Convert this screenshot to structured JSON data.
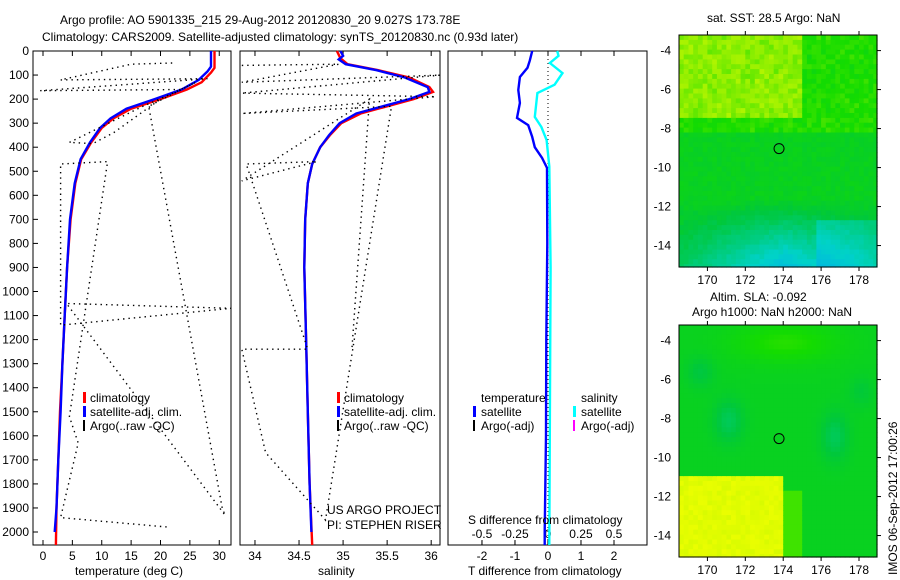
{
  "title": {
    "line1": "Argo profile: AO 5901335_215 29-Aug-2012 20120830_20 9.027S 173.78E",
    "line2": "Climatology: CARS2009. Satellite-adjusted climatology: synTS_20120830.nc (0.93d later)"
  },
  "side_label": "IMOS 06-Sep-2012 17:00:26",
  "colors": {
    "climatology": "#ff0000",
    "satellite": "#0000ff",
    "argo": "#000000",
    "sal_satellite": "#00ffff",
    "sal_argo": "#ff00ff"
  },
  "chart_data": [
    {
      "type": "line",
      "id": "temperature",
      "xlabel": "temperature (deg C)",
      "xlim": [
        -1.7,
        32
      ],
      "ylim": [
        2054,
        0
      ],
      "xticks": [
        0,
        5,
        10,
        15,
        20,
        25,
        30
      ],
      "yticks": [
        0,
        100,
        200,
        300,
        400,
        500,
        600,
        700,
        800,
        900,
        1000,
        1100,
        1200,
        1300,
        1400,
        1500,
        1600,
        1700,
        1800,
        1900,
        2000
      ],
      "legend": [
        "climatology",
        "satellite-adj. clim.",
        "Argo(..raw -QC)"
      ],
      "series": [
        {
          "name": "climatology",
          "points": [
            [
              0,
              29.2
            ],
            [
              70,
              29.2
            ],
            [
              90,
              28.6
            ],
            [
              130,
              27
            ],
            [
              160,
              24.5
            ],
            [
              200,
              20
            ],
            [
              240,
              15
            ],
            [
              280,
              12
            ],
            [
              320,
              10
            ],
            [
              380,
              8.2
            ],
            [
              450,
              6.5
            ],
            [
              550,
              5.5
            ],
            [
              700,
              4.7
            ],
            [
              900,
              4.1
            ],
            [
              1100,
              3.7
            ],
            [
              1300,
              3.3
            ],
            [
              1500,
              2.9
            ],
            [
              1700,
              2.6
            ],
            [
              1900,
              2.3
            ],
            [
              2054,
              2.2
            ]
          ]
        },
        {
          "name": "satellite-adj. clim.",
          "points": [
            [
              0,
              28.6
            ],
            [
              65,
              28.6
            ],
            [
              85,
              28
            ],
            [
              120,
              26.5
            ],
            [
              160,
              23.6
            ],
            [
              200,
              19
            ],
            [
              240,
              14.2
            ],
            [
              280,
              11.5
            ],
            [
              320,
              9.7
            ],
            [
              380,
              8
            ],
            [
              450,
              6.4
            ],
            [
              550,
              5.4
            ],
            [
              700,
              4.6
            ],
            [
              900,
              4.1
            ],
            [
              1100,
              3.7
            ],
            [
              1300,
              3.3
            ],
            [
              1500,
              3
            ],
            [
              1700,
              2.6
            ],
            [
              1900,
              2.3
            ],
            [
              2000,
              2
            ]
          ]
        },
        {
          "name": "Argo(..raw -QC)",
          "points": [
            [
              50,
              22
            ],
            [
              55,
              15
            ],
            [
              120,
              3
            ],
            [
              115,
              28
            ],
            [
              165,
              -0.5
            ],
            [
              160,
              23.5
            ],
            [
              230,
              17
            ],
            [
              380,
              4.5
            ],
            [
              385,
              8.5
            ],
            [
              340,
              12
            ],
            [
              200,
              20
            ],
            [
              130,
              26
            ],
            [
              230,
              18
            ],
            [
              1900,
              30.5
            ],
            [
              1930,
              31
            ],
            [
              1050,
              4
            ],
            [
              1070,
              32
            ],
            [
              1140,
              3
            ],
            [
              470,
              3
            ],
            [
              460,
              11
            ],
            [
              1520,
              4.5
            ],
            [
              1630,
              6
            ],
            [
              1940,
              3
            ],
            [
              1980,
              21.5
            ]
          ]
        }
      ]
    },
    {
      "type": "line",
      "id": "salinity",
      "xlabel": "salinity",
      "xlim": [
        33.83,
        36.1
      ],
      "ylim": [
        2054,
        0
      ],
      "xticks": [
        34,
        34.5,
        35,
        35.5,
        36
      ],
      "legend": [
        "climatology",
        "satellite-adj. clim.",
        "Argo(..raw -QC)"
      ],
      "annotation": [
        "US ARGO PROJECT",
        "PI: STEPHEN RISER"
      ],
      "series": [
        {
          "name": "climatology",
          "points": [
            [
              0,
              34.93
            ],
            [
              30,
              34.97
            ],
            [
              55,
              35.05
            ],
            [
              80,
              35.4
            ],
            [
              110,
              35.75
            ],
            [
              150,
              35.98
            ],
            [
              170,
              36.02
            ],
            [
              200,
              35.8
            ],
            [
              230,
              35.5
            ],
            [
              260,
              35.2
            ],
            [
              300,
              34.98
            ],
            [
              350,
              34.85
            ],
            [
              400,
              34.74
            ],
            [
              470,
              34.65
            ],
            [
              550,
              34.6
            ],
            [
              700,
              34.57
            ],
            [
              900,
              34.56
            ],
            [
              1200,
              34.58
            ],
            [
              1500,
              34.6
            ],
            [
              1800,
              34.62
            ],
            [
              2054,
              34.65
            ]
          ]
        },
        {
          "name": "satellite-adj. clim.",
          "points": [
            [
              0,
              34.97
            ],
            [
              20,
              35
            ],
            [
              35,
              34.95
            ],
            [
              55,
              35.03
            ],
            [
              80,
              35.38
            ],
            [
              110,
              35.7
            ],
            [
              150,
              35.96
            ],
            [
              170,
              35.98
            ],
            [
              200,
              35.75
            ],
            [
              230,
              35.45
            ],
            [
              260,
              35.15
            ],
            [
              300,
              34.96
            ],
            [
              350,
              34.84
            ],
            [
              400,
              34.74
            ],
            [
              470,
              34.65
            ],
            [
              550,
              34.6
            ],
            [
              700,
              34.57
            ],
            [
              900,
              34.56
            ],
            [
              1200,
              34.58
            ],
            [
              1500,
              34.6
            ],
            [
              1800,
              34.62
            ],
            [
              2000,
              34.64
            ]
          ]
        },
        {
          "name": "Argo(..raw -QC)",
          "points": [
            [
              60,
              33.85
            ],
            [
              55,
              34.95
            ],
            [
              130,
              33.85
            ],
            [
              100,
              36.1
            ],
            [
              175,
              33.85
            ],
            [
              190,
              36.05
            ],
            [
              260,
              33.85
            ],
            [
              230,
              35.55
            ],
            [
              1950,
              34.8
            ],
            [
              1670,
              34.12
            ],
            [
              1240,
              33.85
            ],
            [
              1240,
              34.6
            ],
            [
              470,
              33.9
            ],
            [
              460,
              34.7
            ],
            [
              540,
              33.85
            ],
            [
              200,
              35.3
            ],
            [
              1240,
              35.1
            ]
          ]
        }
      ]
    },
    {
      "type": "line",
      "id": "difference",
      "xlabel": "T difference from climatology",
      "x2label": "S difference from climatology",
      "xlim": [
        -3.03,
        3.0
      ],
      "x2lim": [
        -0.757,
        0.75
      ],
      "ylim": [
        2054,
        0
      ],
      "xticks": [
        -2,
        -1,
        0,
        1,
        2
      ],
      "x2ticks": [
        -0.5,
        -0.25,
        0,
        0.25,
        0.5
      ],
      "x2ticklabels": [
        "-0.5",
        "-0.25",
        "0",
        "0.25",
        "0.5"
      ],
      "legend": {
        "temperature": "temperature",
        "salinity": "salinity",
        "satellite": "satellite",
        "argo": "Argo(-adj)"
      },
      "series": [
        {
          "name": "T satellite",
          "axis": "T",
          "points": [
            [
              0,
              -0.48
            ],
            [
              40,
              -0.55
            ],
            [
              70,
              -0.62
            ],
            [
              108,
              -0.85
            ],
            [
              162,
              -0.9
            ],
            [
              216,
              -0.85
            ],
            [
              278,
              -0.94
            ],
            [
              308,
              -0.6
            ],
            [
              357,
              -0.48
            ],
            [
              400,
              -0.4
            ],
            [
              445,
              -0.18
            ],
            [
              486,
              -0.03
            ],
            [
              800,
              -0.02
            ],
            [
              1200,
              -0.05
            ],
            [
              1600,
              -0.06
            ],
            [
              2000,
              -0.1
            ],
            [
              2054,
              -0.1
            ]
          ]
        },
        {
          "name": "S satellite",
          "axis": "S",
          "points": [
            [
              0,
              0.07
            ],
            [
              20,
              0.08
            ],
            [
              50,
              0.015
            ],
            [
              92,
              0.11
            ],
            [
              140,
              0.05
            ],
            [
              175,
              -0.08
            ],
            [
              274,
              -0.1
            ],
            [
              316,
              -0.05
            ],
            [
              370,
              -0.01
            ],
            [
              480,
              0.01
            ],
            [
              900,
              0.02
            ],
            [
              1500,
              0.015
            ],
            [
              2054,
              0.01
            ]
          ]
        }
      ]
    },
    {
      "type": "heatmap",
      "id": "sst_map",
      "title": "sat. SST: 28.5 Argo: NaN",
      "xlim": [
        168.5,
        178.95
      ],
      "ylim": [
        -15.1,
        -3.2
      ],
      "xticks": [
        170,
        172,
        174,
        176,
        178
      ],
      "yticks": [
        -4,
        -6,
        -8,
        -10,
        -12,
        -14
      ],
      "profile_location": [
        173.78,
        -9.027
      ]
    },
    {
      "type": "heatmap",
      "id": "sla_map",
      "title1": "Altim. SLA: -0.092",
      "title2": "Argo h1000: NaN h2000: NaN",
      "xlim": [
        168.5,
        178.95
      ],
      "ylim": [
        -15.1,
        -3.2
      ],
      "xticks": [
        170,
        172,
        174,
        176,
        178
      ],
      "yticks": [
        -4,
        -6,
        -8,
        -10,
        -12,
        -14
      ],
      "profile_location": [
        173.78,
        -9.027
      ]
    }
  ]
}
